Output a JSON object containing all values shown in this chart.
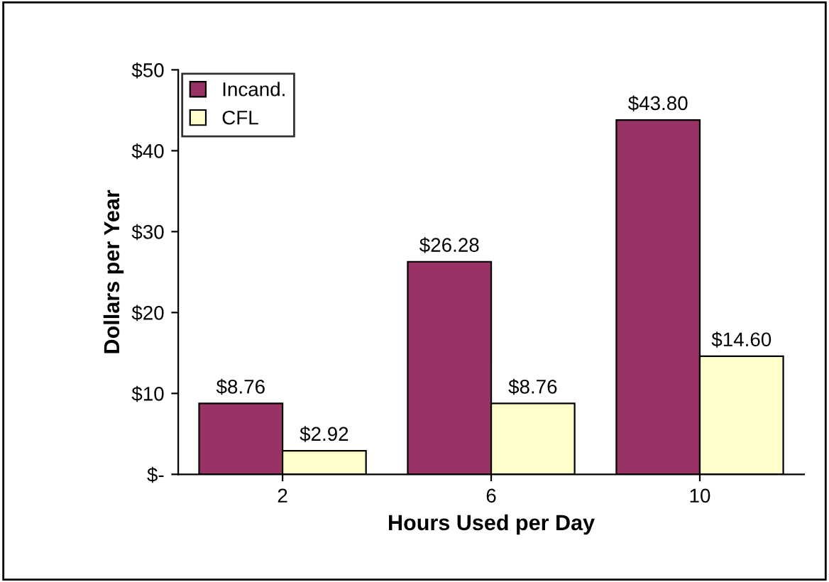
{
  "chart_data": {
    "type": "bar",
    "xlabel": "Hours Used per Day",
    "ylabel": "Dollars per Year",
    "categories": [
      "2",
      "6",
      "10"
    ],
    "series": [
      {
        "name": "Incand.",
        "color": "#993366",
        "values": [
          8.76,
          26.28,
          43.8
        ],
        "value_labels": [
          "$8.76",
          "$26.28",
          "$43.80"
        ]
      },
      {
        "name": "CFL",
        "color": "#ffffcc",
        "values": [
          2.92,
          8.76,
          14.6
        ],
        "value_labels": [
          "$2.92",
          "$8.76",
          "$14.60"
        ]
      }
    ],
    "ylim": [
      0,
      50
    ],
    "yticks": [
      {
        "value": 0,
        "label": "$-"
      },
      {
        "value": 10,
        "label": "$10"
      },
      {
        "value": 20,
        "label": "$20"
      },
      {
        "value": 30,
        "label": "$30"
      },
      {
        "value": 40,
        "label": "$40"
      },
      {
        "value": 50,
        "label": "$50"
      }
    ],
    "grid": false,
    "legend": "top left"
  }
}
